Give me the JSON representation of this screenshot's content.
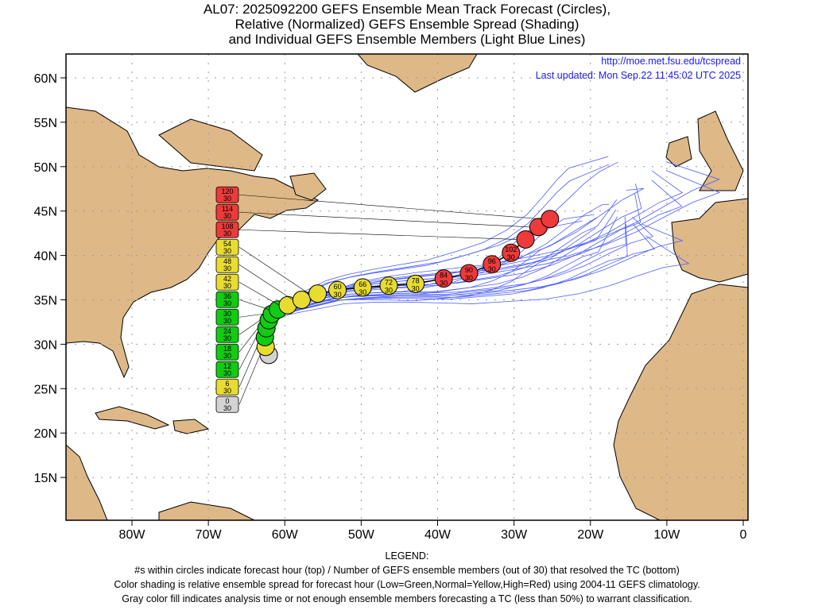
{
  "title_lines": [
    "AL07: 2025092200 GEFS Ensemble Mean Track Forecast (Circles),",
    "Relative (Normalized) GEFS Ensemble Spread (Shading)",
    "and Individual GEFS Ensemble Members (Light Blue Lines)"
  ],
  "source_url": "http://moe.met.fsu.edu/tcspread",
  "last_updated": "Last updated: Mon Sep.22 11:45:02 UTC 2025",
  "legend": {
    "heading": "LEGEND:",
    "lines": [
      "#s within circles indicate forecast hour (top) / Number of GEFS ensemble members (out of 30) that resolved the TC (bottom)",
      "Color shading is relative ensemble spread for forecast hour (Low=Green,Normal=Yellow,High=Red) using 2004-11 GEFS climatology.",
      "Gray color fill indicates analysis time or not enough ensemble members forecasting a TC (less than 50%) to warrant classification."
    ]
  },
  "colors": {
    "gray": "#d3d3d3",
    "green": "#11cc11",
    "yellow": "#e8dc30",
    "red": "#ee3a3a",
    "land": "#deb887",
    "members": "#4a5cff"
  },
  "chart_data": {
    "type": "map-track",
    "lon_ticks": [
      "80W",
      "70W",
      "60W",
      "50W",
      "40W",
      "30W",
      "20W",
      "10W",
      "0"
    ],
    "lon_values": [
      -80,
      -70,
      -60,
      -50,
      -40,
      -30,
      -20,
      -10,
      0
    ],
    "lat_ticks": [
      "60N",
      "55N",
      "50N",
      "45N",
      "40N",
      "35N",
      "30N",
      "25N",
      "20N",
      "15N"
    ],
    "lat_values": [
      60,
      55,
      50,
      45,
      40,
      35,
      30,
      25,
      20,
      15
    ],
    "lon_range": [
      -88.6,
      0.6
    ],
    "lat_range": [
      10.2,
      62.7
    ],
    "track": [
      {
        "hour": 0,
        "members": 30,
        "lon": -62.1,
        "lat": 28.8,
        "spread": "gray"
      },
      {
        "hour": 6,
        "members": 30,
        "lon": -62.5,
        "lat": 29.7,
        "spread": "yellow"
      },
      {
        "hour": 12,
        "members": 30,
        "lon": -62.6,
        "lat": 30.8,
        "spread": "green"
      },
      {
        "hour": 18,
        "members": 30,
        "lon": -62.4,
        "lat": 31.8,
        "spread": "green"
      },
      {
        "hour": 24,
        "members": 30,
        "lon": -62.1,
        "lat": 32.7,
        "spread": "green"
      },
      {
        "hour": 30,
        "members": 30,
        "lon": -61.7,
        "lat": 33.4,
        "spread": "green"
      },
      {
        "hour": 36,
        "members": 30,
        "lon": -60.9,
        "lat": 33.9,
        "spread": "green"
      },
      {
        "hour": 42,
        "members": 30,
        "lon": -59.6,
        "lat": 34.4,
        "spread": "yellow"
      },
      {
        "hour": 48,
        "members": 30,
        "lon": -57.8,
        "lat": 35.0,
        "spread": "yellow"
      },
      {
        "hour": 54,
        "members": 30,
        "lon": -55.7,
        "lat": 35.7,
        "spread": "yellow"
      },
      {
        "hour": 60,
        "members": 30,
        "lon": -53.1,
        "lat": 36.1,
        "spread": "yellow"
      },
      {
        "hour": 66,
        "members": 30,
        "lon": -49.8,
        "lat": 36.4,
        "spread": "yellow"
      },
      {
        "hour": 72,
        "members": 30,
        "lon": -46.4,
        "lat": 36.6,
        "spread": "yellow"
      },
      {
        "hour": 78,
        "members": 30,
        "lon": -42.9,
        "lat": 36.8,
        "spread": "yellow"
      },
      {
        "hour": 84,
        "members": 30,
        "lon": -39.2,
        "lat": 37.4,
        "spread": "red"
      },
      {
        "hour": 90,
        "members": 30,
        "lon": -35.9,
        "lat": 38.0,
        "spread": "red"
      },
      {
        "hour": 96,
        "members": 30,
        "lon": -32.9,
        "lat": 39.0,
        "spread": "red"
      },
      {
        "hour": 102,
        "members": 30,
        "lon": -30.4,
        "lat": 40.3,
        "spread": "red"
      },
      {
        "hour": 108,
        "members": 30,
        "lon": -28.5,
        "lat": 41.8,
        "spread": "red"
      },
      {
        "hour": 114,
        "members": 30,
        "lon": -26.8,
        "lat": 43.2,
        "spread": "red"
      },
      {
        "hour": 120,
        "members": 30,
        "lon": -25.3,
        "lat": 44.1,
        "spread": "red"
      }
    ]
  }
}
